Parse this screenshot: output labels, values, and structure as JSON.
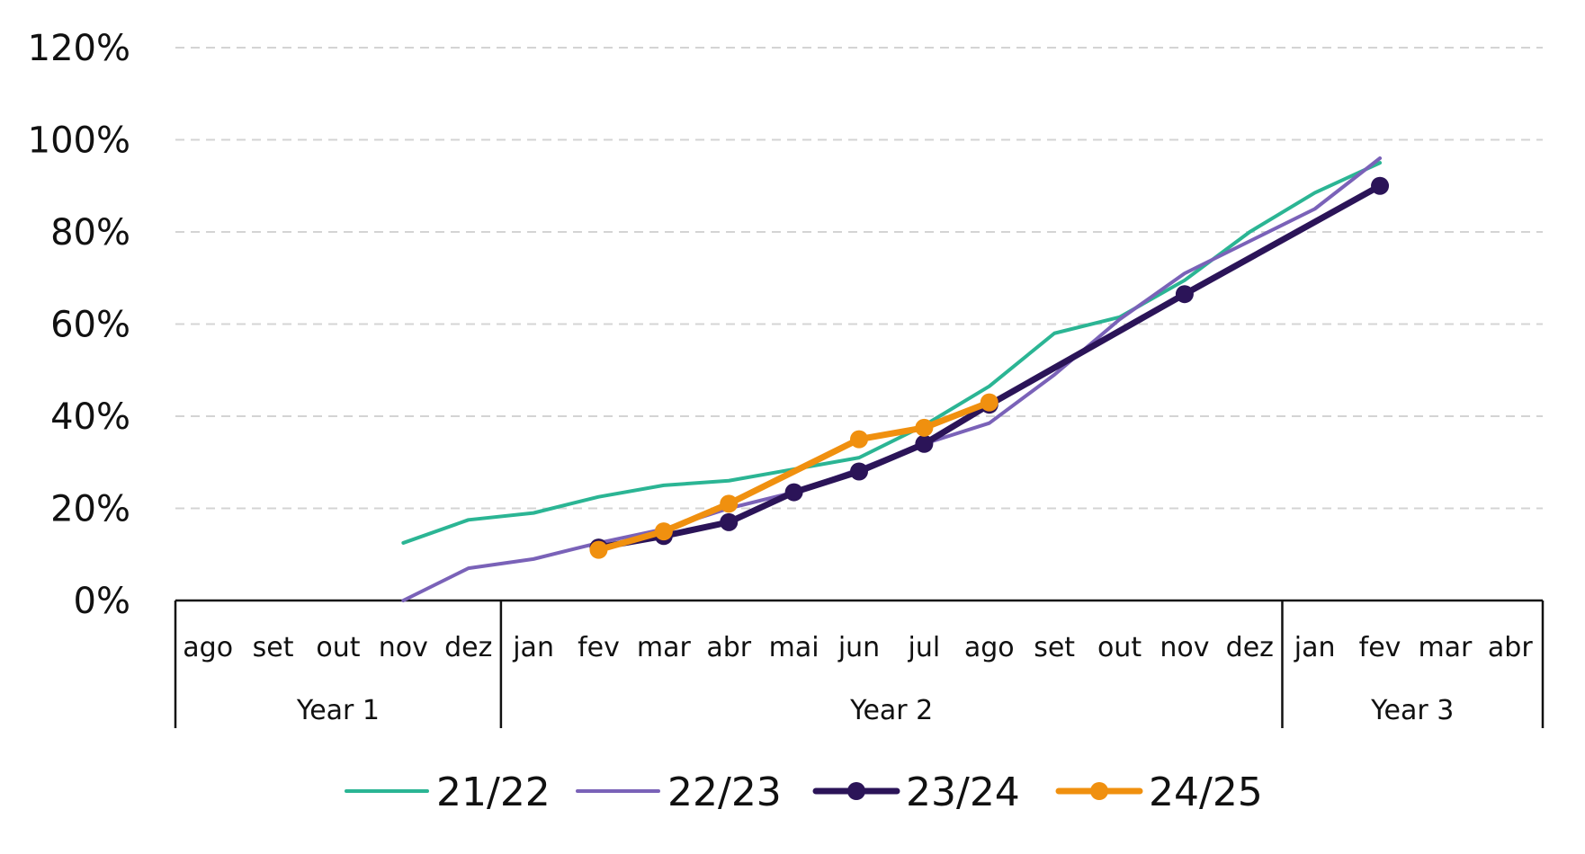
{
  "chart_data": {
    "type": "line",
    "title": "",
    "xlabel": "",
    "ylabel": "",
    "ylim": [
      0,
      120
    ],
    "y_ticks": [
      "0%",
      "20%",
      "40%",
      "60%",
      "80%",
      "100%",
      "120%"
    ],
    "grid": "horizontal dashed",
    "categories": [
      "ago",
      "set",
      "out",
      "nov",
      "dez",
      "jan",
      "fev",
      "mar",
      "abr",
      "mai",
      "jun",
      "jul",
      "ago",
      "set",
      "out",
      "nov",
      "dez",
      "jan",
      "fev",
      "mar",
      "abr"
    ],
    "category_groups": [
      {
        "label": "Year 1",
        "start": 0,
        "end": 4
      },
      {
        "label": "Year 2",
        "start": 5,
        "end": 16
      },
      {
        "label": "Year 3",
        "start": 17,
        "end": 20
      }
    ],
    "legend_position": "bottom",
    "series": [
      {
        "name": "21/22",
        "color": "#2bb594",
        "markers": false,
        "values": [
          null,
          null,
          null,
          12.5,
          17.5,
          19,
          22.5,
          25,
          26,
          28.5,
          31,
          38,
          46.5,
          58,
          61.5,
          69.5,
          80,
          88.5,
          95,
          null,
          null
        ]
      },
      {
        "name": "22/23",
        "color": "#7a62b8",
        "markers": false,
        "values": [
          null,
          null,
          null,
          0,
          7,
          9,
          12.5,
          15.5,
          20,
          23.5,
          28.5,
          34,
          38.5,
          49,
          61,
          71,
          78,
          85,
          96,
          null,
          null
        ]
      },
      {
        "name": "23/24",
        "color": "#2b1458",
        "markers": true,
        "values": [
          null,
          null,
          null,
          null,
          null,
          null,
          11.5,
          14,
          17,
          23.5,
          28,
          34,
          42.5,
          null,
          null,
          66.5,
          null,
          null,
          90,
          null,
          null
        ]
      },
      {
        "name": "24/25",
        "color": "#f0900f",
        "markers": true,
        "values": [
          null,
          null,
          null,
          null,
          null,
          null,
          11,
          15,
          21,
          null,
          35,
          37.5,
          43,
          null,
          null,
          null,
          null,
          null,
          null,
          null,
          null
        ]
      }
    ]
  }
}
